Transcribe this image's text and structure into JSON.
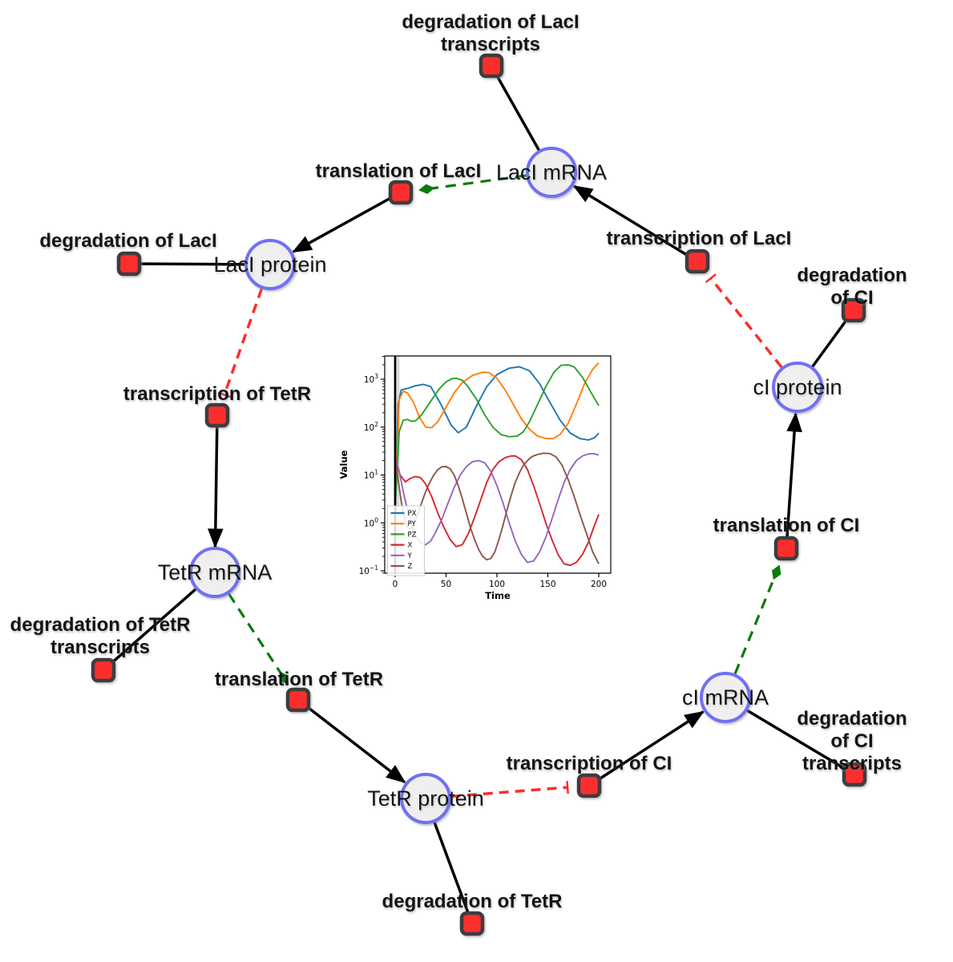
{
  "diagram": {
    "species": [
      {
        "id": "laci-mrna",
        "label": "LacI mRNA"
      },
      {
        "id": "laci-protein",
        "label": "LacI protein"
      },
      {
        "id": "tetr-mrna",
        "label": "TetR mRNA"
      },
      {
        "id": "tetr-protein",
        "label": "TetR protein"
      },
      {
        "id": "ci-mrna",
        "label": "cI mRNA"
      },
      {
        "id": "ci-protein",
        "label": "cI protein"
      }
    ],
    "reactions": [
      {
        "id": "degradation-laci-transcripts",
        "label": "degradation of LacI\ntranscripts"
      },
      {
        "id": "translation-laci",
        "label": "translation of LacI"
      },
      {
        "id": "degradation-laci",
        "label": "degradation of LacI"
      },
      {
        "id": "transcription-tetr",
        "label": "transcription of TetR"
      },
      {
        "id": "degradation-tetr-transcripts",
        "label": "degradation of TetR\ntranscripts"
      },
      {
        "id": "translation-tetr",
        "label": "translation of TetR"
      },
      {
        "id": "degradation-tetr",
        "label": "degradation of TetR"
      },
      {
        "id": "transcription-ci",
        "label": "transcription of CI"
      },
      {
        "id": "degradation-ci-transcripts",
        "label": "degradation of CI\ntranscripts"
      },
      {
        "id": "translation-ci",
        "label": "translation of CI"
      },
      {
        "id": "degradation-ci",
        "label": "degradation of CI"
      },
      {
        "id": "transcription-laci",
        "label": "transcription of LacI"
      }
    ],
    "colors": {
      "species_fill": "#efefef",
      "species_border": "#6f6ff5",
      "reaction_fill": "#fb2e2e",
      "reaction_border": "#3d3d3d",
      "edge": "#000000",
      "activation": "#0b7a0b",
      "inhibition": "#fb2e2e"
    }
  },
  "chart_data": {
    "type": "line",
    "title": "",
    "xlabel": "Time",
    "ylabel": "Value",
    "yscale": "log",
    "xlim": [
      -10.2,
      211.8
    ],
    "ylim_log": [
      -1.05,
      3.486
    ],
    "x_ticks": [
      0,
      50,
      100,
      150,
      200
    ],
    "y_ticks_exp": [
      -1,
      0,
      1,
      2,
      3
    ],
    "legend_position": "lower left",
    "vline_x": 0,
    "grid": false,
    "series": [
      {
        "name": "PX",
        "color": "#1f77b4",
        "x": [
          0,
          3,
          6,
          12,
          20,
          28,
          35,
          45,
          55,
          62,
          70,
          80,
          90,
          100,
          112,
          122,
          132,
          142,
          152,
          162,
          172,
          182,
          190,
          196,
          200
        ],
        "y": [
          2,
          300,
          600,
          640,
          730,
          780,
          700,
          300,
          110,
          76,
          100,
          280,
          700,
          1250,
          1700,
          1820,
          1500,
          800,
          330,
          140,
          75,
          57,
          54,
          60,
          75
        ]
      },
      {
        "name": "PY",
        "color": "#ff7f0e",
        "x": [
          0,
          4,
          8,
          12,
          18,
          24,
          30,
          36,
          42,
          50,
          58,
          66,
          76,
          86,
          92,
          100,
          108,
          116,
          124,
          132,
          140,
          148,
          155,
          162,
          170,
          178,
          186,
          194,
          200
        ],
        "y": [
          2,
          380,
          560,
          520,
          330,
          160,
          100,
          97,
          130,
          260,
          520,
          850,
          1200,
          1400,
          1380,
          1050,
          600,
          300,
          150,
          90,
          65,
          58,
          57,
          70,
          120,
          300,
          800,
          1600,
          2200
        ]
      },
      {
        "name": "PZ",
        "color": "#2ca02c",
        "x": [
          0,
          4,
          8,
          12,
          16,
          20,
          26,
          32,
          38,
          44,
          50,
          56,
          60,
          66,
          72,
          80,
          88,
          96,
          104,
          112,
          120,
          126,
          132,
          140,
          148,
          156,
          163,
          170,
          176,
          184,
          192,
          200
        ],
        "y": [
          2,
          80,
          140,
          145,
          132,
          135,
          180,
          280,
          430,
          650,
          880,
          1030,
          1050,
          950,
          680,
          380,
          180,
          100,
          70,
          63,
          65,
          80,
          130,
          300,
          700,
          1400,
          1950,
          2000,
          1800,
          1100,
          550,
          280
        ]
      },
      {
        "name": "X",
        "color": "#d62728",
        "x": [
          0,
          5,
          10,
          15,
          20,
          25,
          30,
          36,
          42,
          48,
          54,
          60,
          66,
          72,
          78,
          84,
          90,
          96,
          102,
          108,
          114,
          118,
          124,
          130,
          136,
          142,
          148,
          154,
          160,
          166,
          172,
          178,
          184,
          190,
          195,
          200
        ],
        "y": [
          20,
          10,
          7.2,
          8.5,
          9.3,
          8.8,
          6.5,
          3.5,
          1.6,
          0.8,
          0.45,
          0.32,
          0.35,
          0.6,
          1.3,
          3,
          7,
          13,
          19,
          23,
          25,
          25,
          21,
          13,
          6,
          2.5,
          1.0,
          0.45,
          0.22,
          0.14,
          0.13,
          0.15,
          0.22,
          0.4,
          0.8,
          1.5
        ]
      },
      {
        "name": "Y",
        "color": "#9467bd",
        "x": [
          0,
          4,
          8,
          12,
          16,
          20,
          25,
          30,
          35,
          40,
          46,
          52,
          58,
          64,
          70,
          76,
          82,
          88,
          94,
          100,
          106,
          112,
          118,
          124,
          130,
          136,
          142,
          148,
          154,
          160,
          166,
          172,
          178,
          184,
          190,
          195,
          200
        ],
        "y": [
          25,
          12,
          4.5,
          1.9,
          0.95,
          0.55,
          0.38,
          0.35,
          0.42,
          0.65,
          1.2,
          2.6,
          5.5,
          10,
          15,
          19,
          20,
          18,
          12,
          6,
          2.6,
          1.0,
          0.42,
          0.22,
          0.15,
          0.16,
          0.25,
          0.5,
          1.2,
          3,
          7,
          13,
          20,
          25,
          27.5,
          28,
          26
        ]
      },
      {
        "name": "Z",
        "color": "#8c564b",
        "x": [
          0,
          3,
          6,
          9,
          12,
          15,
          18,
          22,
          26,
          30,
          34,
          38,
          42,
          46,
          50,
          54,
          58,
          62,
          66,
          70,
          74,
          78,
          82,
          86,
          90,
          94,
          98,
          102,
          106,
          110,
          114,
          118,
          122,
          126,
          130,
          134,
          140,
          146,
          152,
          158,
          164,
          170,
          176,
          182,
          188,
          194,
          200
        ],
        "y": [
          25,
          8,
          2.8,
          1.3,
          0.8,
          0.75,
          0.9,
          1.5,
          2.6,
          4.5,
          7,
          10,
          13,
          14.8,
          15,
          13.5,
          10,
          6,
          3.2,
          1.6,
          0.8,
          0.45,
          0.28,
          0.2,
          0.17,
          0.18,
          0.25,
          0.45,
          0.9,
          1.9,
          3.8,
          7,
          11,
          16,
          20,
          24,
          27,
          28.5,
          28,
          24,
          16,
          8,
          3.5,
          1.4,
          0.6,
          0.25,
          0.14
        ]
      }
    ]
  }
}
